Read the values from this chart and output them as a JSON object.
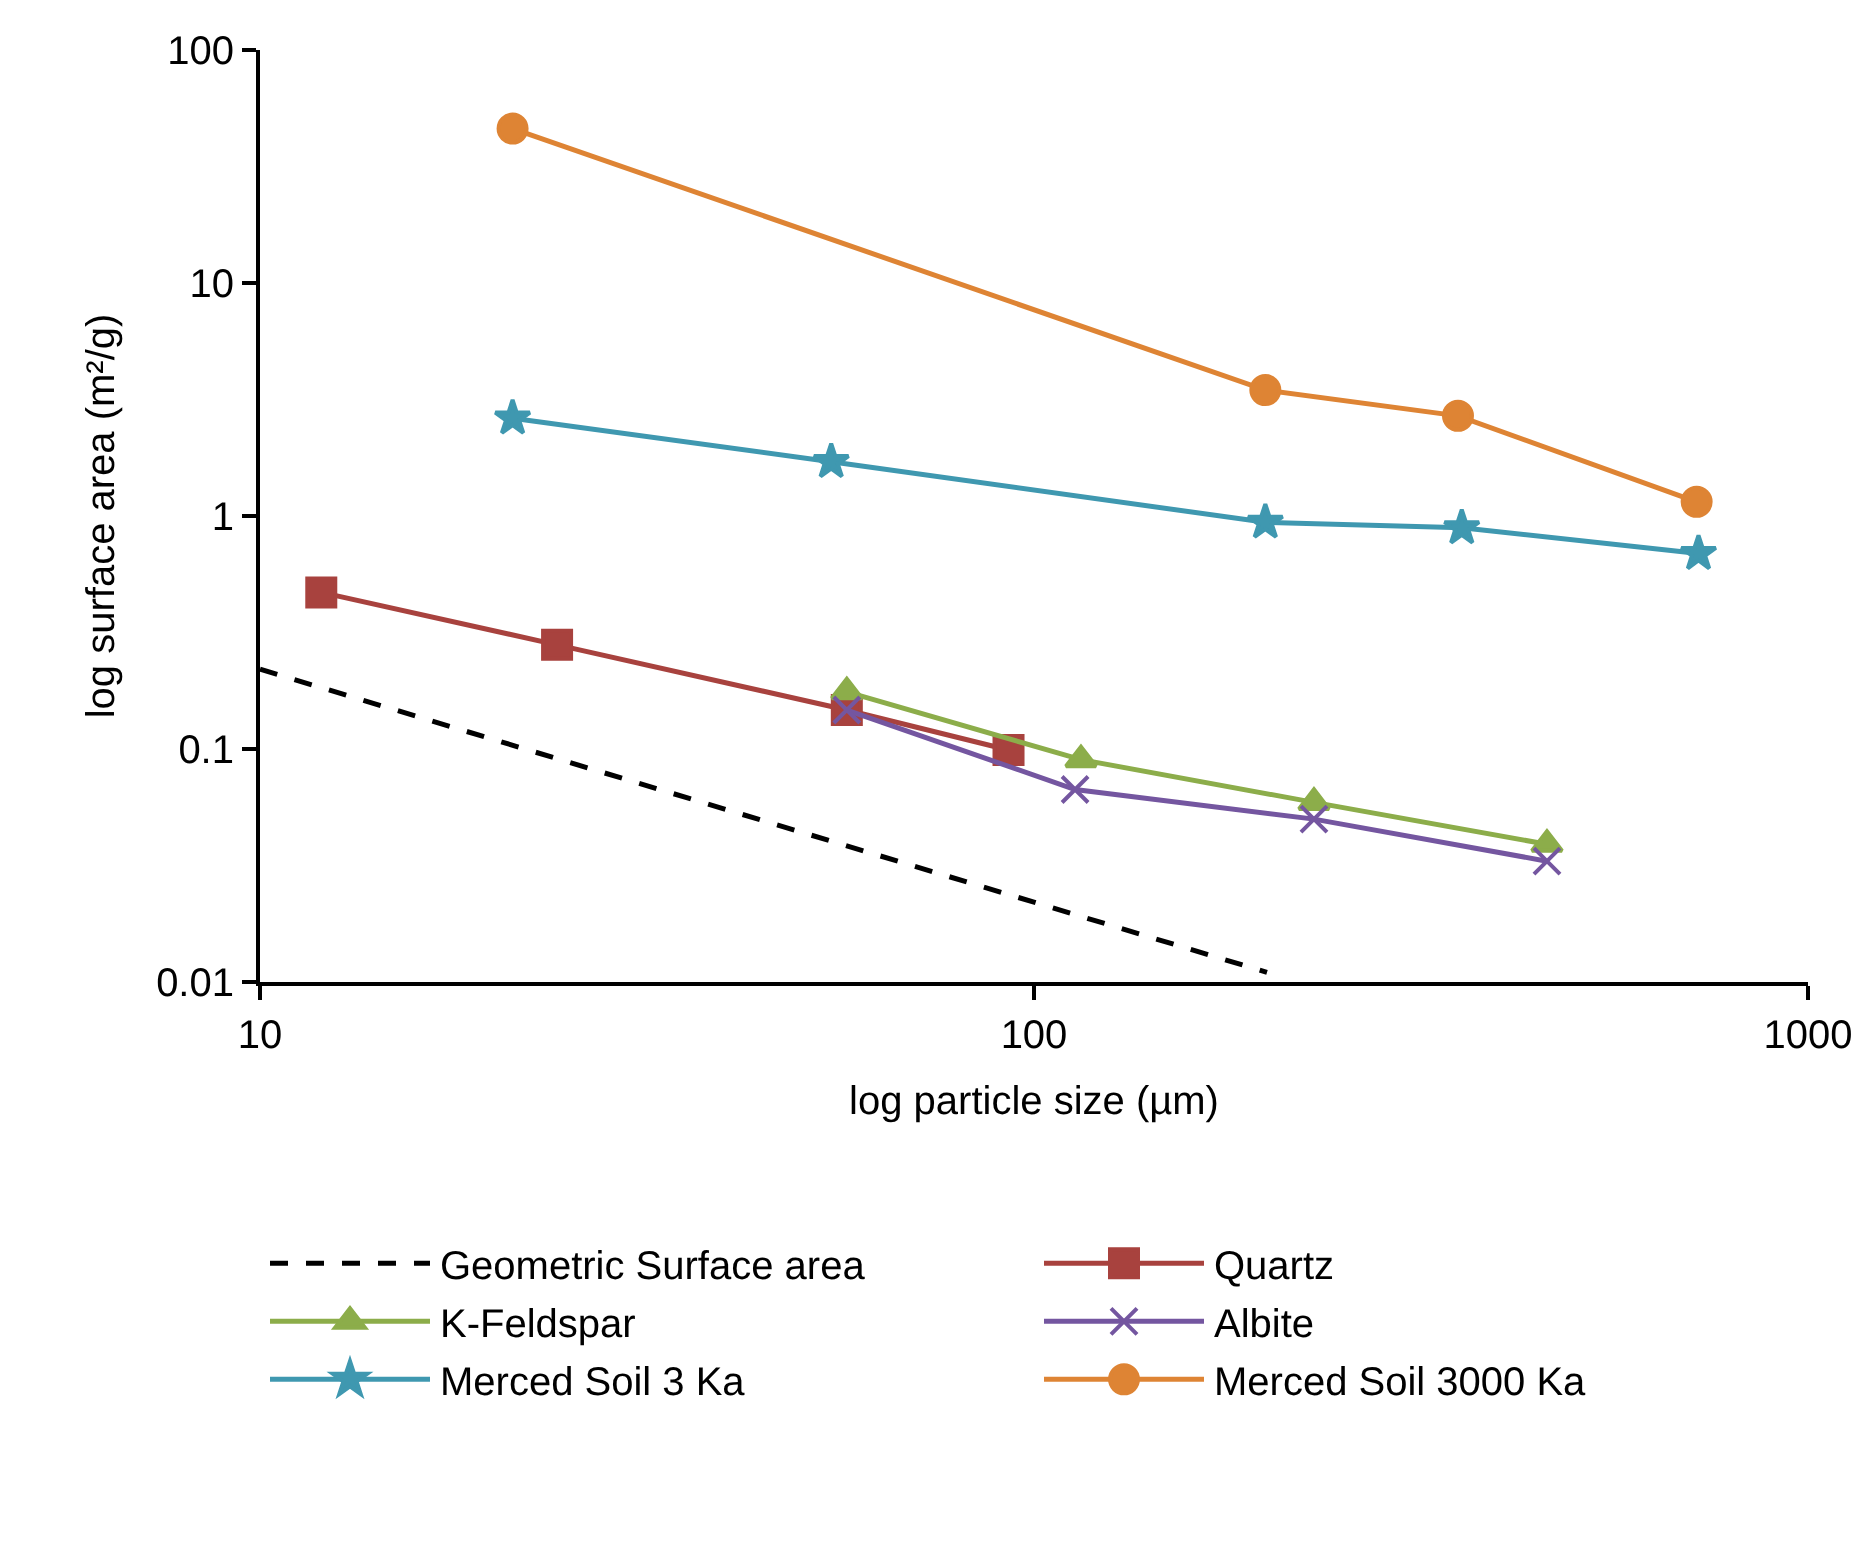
{
  "chart_data": {
    "type": "line",
    "xlabel": "log particle size (µm)",
    "ylabel": "log surface area (m²/g)",
    "log": "xy",
    "xlim": [
      10,
      1000
    ],
    "xticks": [
      10,
      100,
      1000
    ],
    "ylim": [
      0.01,
      100
    ],
    "yticks": [
      0.01,
      0.1,
      1,
      10,
      100
    ],
    "legend": "bottom",
    "series": [
      {
        "name": "Geometric Surface area",
        "color": "#000000",
        "marker": "none",
        "line_style": "dashed",
        "x": [
          10,
          200
        ],
        "values": [
          0.22,
          0.011
        ]
      },
      {
        "name": "Quartz",
        "color": "#a8423e",
        "marker": "square",
        "line_style": "solid",
        "x": [
          12.0,
          24.2,
          57.3,
          92.7
        ],
        "values": [
          0.47,
          0.28,
          0.147,
          0.099
        ]
      },
      {
        "name": "K-Feldspar",
        "color": "#8cad4a",
        "marker": "triangle",
        "line_style": "solid",
        "x": [
          57.3,
          115,
          230,
          460
        ],
        "values": [
          0.176,
          0.09,
          0.059,
          0.039
        ]
      },
      {
        "name": "Albite",
        "color": "#7456a0",
        "marker": "cross",
        "line_style": "solid",
        "x": [
          57.3,
          113,
          230,
          460
        ],
        "values": [
          0.147,
          0.067,
          0.05,
          0.033
        ]
      },
      {
        "name": "Merced Soil 3 Ka",
        "color": "#3f98b0",
        "marker": "star",
        "line_style": "solid",
        "x": [
          21.2,
          54.7,
          199,
          357,
          722
        ],
        "values": [
          2.63,
          1.71,
          0.94,
          0.89,
          0.69
        ]
      },
      {
        "name": "Merced Soil 3000 Ka",
        "color": "#de8434",
        "marker": "circle",
        "line_style": "solid",
        "x": [
          21.2,
          199,
          353,
          718
        ],
        "values": [
          46,
          3.47,
          2.69,
          1.15
        ]
      }
    ]
  }
}
